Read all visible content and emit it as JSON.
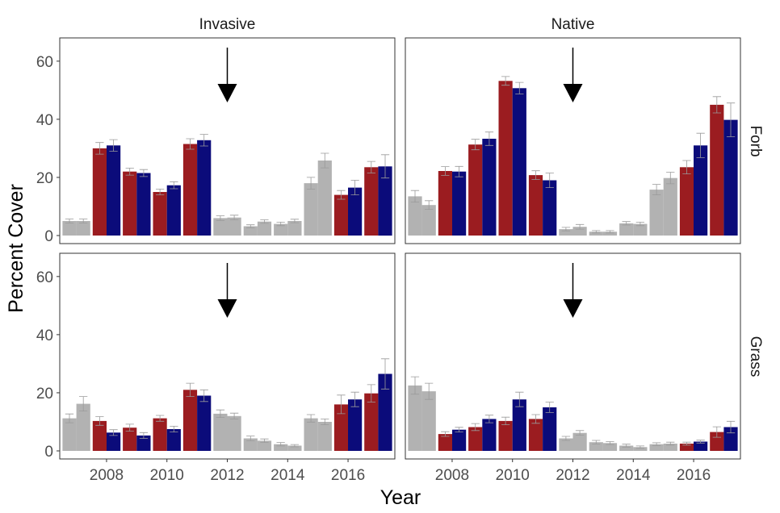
{
  "chart_data": {
    "type": "bar",
    "xlabel": "Year",
    "ylabel": "Percent Cover",
    "ylim": [
      0,
      68
    ],
    "yticks": [
      0,
      20,
      40,
      60
    ],
    "xticks": [
      2008,
      2010,
      2012,
      2014,
      2016
    ],
    "xlim": [
      2006.45,
      2017.55
    ],
    "grid": false,
    "arrow_year": 2012,
    "column_strips": [
      "Invasive",
      "Native"
    ],
    "row_strips": [
      "Forb",
      "Grass"
    ],
    "colors": {
      "gray": "#b2b2b2",
      "red": "#9b1c20",
      "blue": "#0b0b7a",
      "error": "#9a9a9a"
    },
    "years": [
      2007,
      2008,
      2009,
      2010,
      2011,
      2012,
      2013,
      2014,
      2015,
      2016,
      2017
    ],
    "bar_colors": [
      "gray",
      "red-blue",
      "red-blue",
      "red-blue",
      "red-blue",
      "gray",
      "gray",
      "gray",
      "gray",
      "red-blue",
      "red-blue"
    ],
    "panels": [
      {
        "column": "Invasive",
        "row": "Forb",
        "a": [
          5.0,
          30.0,
          22.0,
          15.0,
          31.5,
          6.0,
          3.2,
          4.0,
          18.0,
          14.0,
          23.5
        ],
        "a_err": [
          0.7,
          2.0,
          1.2,
          1.0,
          1.8,
          0.8,
          0.5,
          0.6,
          2.0,
          1.5,
          2.0
        ],
        "b": [
          5.0,
          31.0,
          21.5,
          17.3,
          32.8,
          6.2,
          4.8,
          5.0,
          25.8,
          16.5,
          23.8
        ],
        "b_err": [
          0.7,
          2.0,
          1.2,
          1.2,
          2.0,
          0.8,
          0.6,
          0.6,
          2.5,
          2.5,
          4.0
        ]
      },
      {
        "column": "Native",
        "row": "Forb",
        "a": [
          13.5,
          22.2,
          31.3,
          53.2,
          20.8,
          2.2,
          1.3,
          4.2,
          15.8,
          23.5,
          45.0
        ],
        "a_err": [
          2.0,
          1.5,
          1.8,
          1.5,
          1.5,
          0.6,
          0.4,
          0.6,
          1.8,
          2.3,
          2.8
        ],
        "b": [
          10.5,
          22.0,
          33.3,
          50.7,
          19.0,
          3.0,
          1.3,
          4.0,
          19.8,
          31.0,
          39.8
        ],
        "b_err": [
          1.5,
          1.8,
          2.3,
          2.0,
          2.5,
          0.8,
          0.4,
          0.6,
          2.0,
          4.2,
          5.8
        ]
      },
      {
        "column": "Invasive",
        "row": "Grass",
        "a": [
          11.2,
          10.3,
          8.0,
          11.2,
          21.0,
          12.8,
          4.3,
          2.3,
          11.2,
          16.0,
          19.8
        ],
        "a_err": [
          1.5,
          1.5,
          1.2,
          1.0,
          2.3,
          1.3,
          0.8,
          0.6,
          1.3,
          3.2,
          3.0
        ],
        "b": [
          16.2,
          6.3,
          5.3,
          7.5,
          19.0,
          12.0,
          3.5,
          1.8,
          10.0,
          17.7,
          26.5
        ],
        "b_err": [
          2.5,
          1.0,
          1.0,
          1.0,
          2.0,
          1.0,
          0.6,
          0.4,
          1.0,
          2.5,
          5.2
        ]
      },
      {
        "column": "Native",
        "row": "Grass",
        "a": [
          22.5,
          5.8,
          8.2,
          10.3,
          11.0,
          4.3,
          3.0,
          1.8,
          2.3,
          2.5,
          6.5
        ],
        "a_err": [
          3.0,
          0.8,
          1.2,
          1.3,
          1.5,
          0.7,
          0.6,
          0.5,
          0.5,
          0.5,
          1.8
        ],
        "b": [
          20.5,
          7.3,
          11.0,
          17.7,
          15.0,
          6.2,
          2.7,
          1.3,
          2.5,
          3.2,
          8.2
        ],
        "b_err": [
          2.8,
          0.8,
          1.3,
          2.5,
          1.8,
          0.8,
          0.5,
          0.4,
          0.5,
          0.5,
          2.0
        ]
      }
    ]
  }
}
